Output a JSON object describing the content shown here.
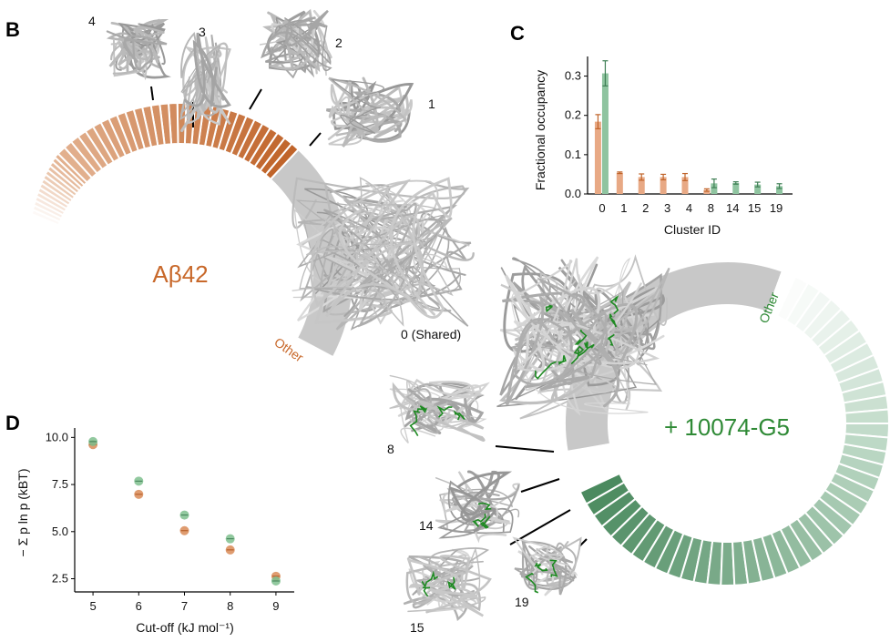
{
  "panels": {
    "B": {
      "letter": "B",
      "center_label": "Aβ42",
      "other_label": "Other",
      "shared_label": "0 (Shared)",
      "structure_labels": [
        "1",
        "2",
        "3",
        "4"
      ],
      "color": "#c8682a"
    },
    "ring2": {
      "center_label": "+ 10074-G5",
      "other_label": "Other",
      "structure_labels": [
        "8",
        "14",
        "15",
        "19"
      ],
      "color": "#4e8f63"
    },
    "C": {
      "letter": "C",
      "xlabel": "Cluster ID",
      "ylabel": "Fractional occupancy"
    },
    "D": {
      "letter": "D",
      "xlabel": "Cut-off (kJ mol⁻¹)",
      "ylabel": "− Σ p ln p (kBT)"
    }
  },
  "colors": {
    "abeta": "#d98b57",
    "abeta_dark": "#c0642a",
    "ligand": "#6aa880",
    "ligand_dark": "#3f7f55",
    "shared_gray": "#c8c8c8",
    "structure_green": "#1e8a22"
  },
  "chart_data": [
    {
      "type": "bar",
      "panel": "C",
      "xlabel": "Cluster ID",
      "ylabel": "Fractional occupancy",
      "categories": [
        "0",
        "1",
        "2",
        "3",
        "4",
        "8",
        "14",
        "15",
        "19"
      ],
      "ylim": [
        0,
        0.35
      ],
      "yticks": [
        0.0,
        0.1,
        0.2,
        0.3
      ],
      "series": [
        {
          "color": "#e8a985",
          "values": [
            0.184,
            0.054,
            0.043,
            0.043,
            0.043,
            0.01,
            0.0,
            0.0,
            0.0
          ],
          "errors": [
            0.018,
            0.002,
            0.008,
            0.007,
            0.009,
            0.003,
            0.0,
            0.0,
            0.0
          ]
        },
        {
          "color": "#8fc4a0",
          "values": [
            0.307,
            0.0,
            0.0,
            0.0,
            0.0,
            0.027,
            0.028,
            0.024,
            0.02
          ],
          "errors": [
            0.032,
            0.0,
            0.0,
            0.0,
            0.0,
            0.011,
            0.003,
            0.006,
            0.006
          ]
        }
      ]
    },
    {
      "type": "scatter",
      "panel": "D",
      "xlabel": "Cut-off (kJ mol⁻¹)",
      "ylabel": "− Σ p ln p (kBT)",
      "x": [
        5,
        6,
        7,
        8,
        9
      ],
      "xlim": [
        4.6,
        9.4
      ],
      "ylim": [
        1.8,
        10.5
      ],
      "yticks": [
        2.5,
        5.0,
        7.5,
        10.0
      ],
      "series": [
        {
          "color": "#d98b57",
          "y": [
            9.62,
            6.98,
            5.05,
            4.03,
            2.63
          ]
        },
        {
          "color": "#7fbf8e",
          "y": [
            9.78,
            7.68,
            5.88,
            4.62,
            2.38
          ]
        }
      ]
    }
  ]
}
